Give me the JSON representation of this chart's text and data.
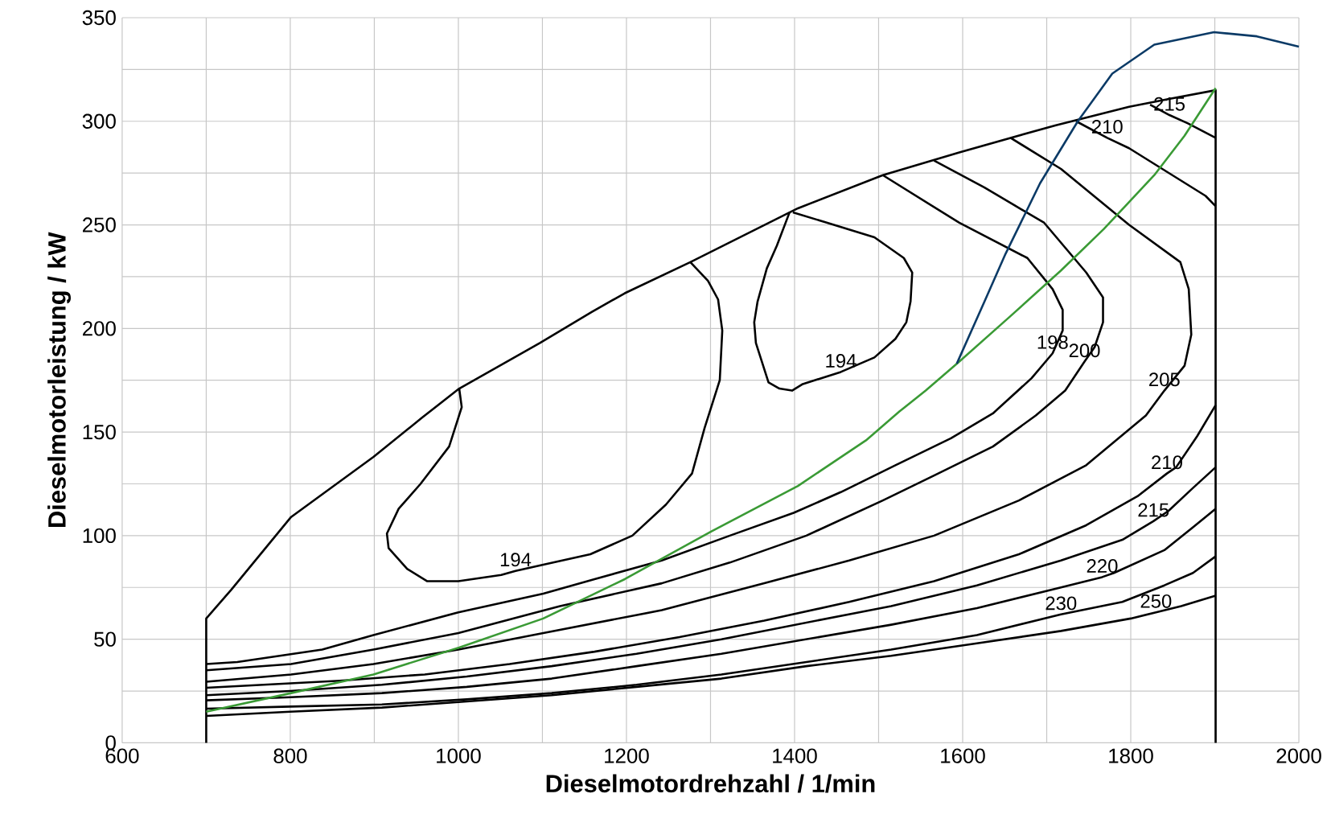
{
  "chart_data": {
    "type": "line",
    "xlabel": "Dieselmotordrehzahl / 1/min",
    "ylabel": "Dieselmotorleistung / kW",
    "xlim": [
      600,
      2000
    ],
    "ylim": [
      0,
      350
    ],
    "xticks": [
      600,
      800,
      1000,
      1200,
      1400,
      1600,
      1800,
      2000
    ],
    "yticks": [
      0,
      50,
      100,
      150,
      200,
      250,
      300,
      350
    ],
    "grid": true,
    "series": [
      {
        "color": "#000000",
        "x": [
          700,
          700,
          730,
          801,
          899,
          957,
          1001,
          1097,
          1159,
          1198,
          1276,
          1404,
          1505,
          1596,
          1710,
          1798,
          1848,
          1901,
          1901
        ],
        "values": [
          0,
          60,
          74,
          109,
          138,
          157,
          171,
          193,
          208,
          217,
          232,
          258,
          274,
          285,
          298,
          307,
          311,
          315,
          0
        ]
      },
      {
        "color": "#000000",
        "x": [
          1001,
          1004,
          989,
          955,
          929,
          915,
          917,
          939,
          963,
          1000,
          1051,
          1068,
          1101,
          1157,
          1207,
          1247,
          1278,
          1293,
          1311,
          1314,
          1309,
          1297,
          1276
        ],
        "values": [
          171,
          162,
          143,
          125,
          113,
          101,
          94,
          84,
          78,
          78,
          81,
          83,
          86,
          91,
          100,
          115,
          130,
          152,
          175,
          199,
          214,
          223,
          232
        ]
      },
      {
        "color": "#000000",
        "x": [
          1394,
          1379,
          1367,
          1356,
          1352,
          1354,
          1369,
          1382,
          1397,
          1409,
          1455,
          1495,
          1520,
          1533,
          1538,
          1540,
          1530,
          1495,
          1439,
          1398
        ],
        "values": [
          256,
          240,
          229,
          213,
          203,
          193,
          174,
          171,
          170,
          173,
          179,
          186,
          195,
          203,
          213,
          227,
          234,
          244,
          251,
          256
        ]
      },
      {
        "color": "#000000",
        "x": [
          1505,
          1596,
          1677,
          1707,
          1719,
          1719,
          1707,
          1682,
          1636,
          1586,
          1520,
          1455,
          1399,
          1323,
          1242,
          1162,
          1101,
          1000,
          899,
          838,
          737,
          700
        ],
        "values": [
          274,
          251,
          234,
          219,
          209,
          199,
          188,
          176,
          159,
          147,
          134,
          121,
          111,
          100,
          88,
          79,
          72,
          63,
          52,
          45,
          39,
          38
        ]
      },
      {
        "color": "#000000",
        "x": [
          1566,
          1626,
          1697,
          1747,
          1767,
          1767,
          1757,
          1745,
          1722,
          1687,
          1636,
          1566,
          1505,
          1414,
          1323,
          1242,
          1121,
          1000,
          899,
          801,
          700
        ],
        "values": [
          281,
          268,
          251,
          227,
          215,
          203,
          191,
          184,
          170,
          158,
          143,
          129,
          117,
          100,
          87,
          77,
          66,
          53,
          45,
          38,
          35
        ]
      },
      {
        "color": "#000000",
        "x": [
          1657,
          1717,
          1798,
          1859,
          1869,
          1872,
          1864,
          1840,
          1818,
          1747,
          1667,
          1566,
          1465,
          1364,
          1242,
          1101,
          1000,
          899,
          801,
          700
        ],
        "values": [
          292,
          277,
          250,
          232,
          219,
          197,
          182,
          170,
          158,
          134,
          117,
          100,
          88,
          77,
          64,
          53,
          45,
          38,
          33,
          29.5
        ]
      },
      {
        "color": "#000000",
        "x": [
          1735,
          1772,
          1798,
          1889,
          1901
        ],
        "values": [
          300,
          292,
          287,
          264,
          259
        ]
      },
      {
        "color": "#000000",
        "x": [
          1823,
          1846,
          1868,
          1901
        ],
        "values": [
          308,
          303,
          299,
          292
        ]
      },
      {
        "color": "#000000",
        "x": [
          1901,
          1879,
          1854,
          1843,
          1808,
          1747,
          1667,
          1566,
          1465,
          1364,
          1263,
          1162,
          1061,
          960,
          859,
          700
        ],
        "values": [
          163,
          148,
          133,
          130,
          119,
          105,
          91,
          78,
          68,
          59,
          51,
          44,
          38,
          33,
          30,
          26.6
        ]
      },
      {
        "color": "#000000",
        "x": [
          1901,
          1874,
          1845,
          1827,
          1790,
          1717,
          1617,
          1515,
          1414,
          1313,
          1212,
          1111,
          1010,
          909,
          800,
          700
        ],
        "values": [
          133,
          123,
          112,
          107,
          98,
          88,
          76,
          66,
          58,
          50,
          43,
          37,
          32,
          28,
          25,
          23
        ]
      },
      {
        "color": "#000000",
        "x": [
          1901,
          1874,
          1840,
          1780,
          1766,
          1717,
          1617,
          1515,
          1414,
          1313,
          1212,
          1111,
          1010,
          909,
          800,
          700
        ],
        "values": [
          113,
          104,
          93,
          82,
          80,
          75,
          65,
          57,
          50,
          43,
          37,
          31,
          27,
          24,
          22,
          20.5
        ]
      },
      {
        "color": "#000000",
        "x": [
          1901,
          1874,
          1840,
          1790,
          1717,
          1617,
          1515,
          1414,
          1313,
          1212,
          1111,
          1010,
          909,
          800,
          700
        ],
        "values": [
          90,
          82,
          76,
          68,
          62,
          52,
          45,
          39,
          33,
          28,
          24,
          21,
          18.5,
          17.5,
          16.5
        ]
      },
      {
        "color": "#000000",
        "x": [
          1901,
          1860,
          1830,
          1800,
          1717,
          1617,
          1515,
          1414,
          1313,
          1212,
          1111,
          1010,
          909,
          800,
          700
        ],
        "values": [
          71,
          66,
          63,
          60,
          54,
          48,
          42,
          37,
          31,
          27,
          23,
          20,
          17,
          15,
          13
        ]
      },
      {
        "color": "#3a9a35",
        "x": [
          700,
          801,
          899,
          1001,
          1101,
          1198,
          1301,
          1404,
          1485,
          1525,
          1556,
          1596,
          1657,
          1717,
          1768,
          1828,
          1864,
          1901
        ],
        "values": [
          15,
          24,
          33,
          46,
          60,
          79,
          102,
          124,
          146,
          160,
          170,
          184,
          206,
          228,
          248,
          274,
          293,
          316
        ]
      },
      {
        "color": "#0b3a66",
        "x": [
          1593,
          1626,
          1651,
          1692,
          1737,
          1778,
          1828,
          1899,
          1950,
          2000
        ],
        "values": [
          183,
          213,
          236,
          270,
          300,
          323,
          337,
          343,
          341,
          336
        ]
      }
    ],
    "annotations": [
      {
        "text": "194",
        "x": 1068,
        "y": 83
      },
      {
        "text": "194",
        "x": 1455,
        "y": 179
      },
      {
        "text": "198",
        "x": 1707,
        "y": 188
      },
      {
        "text": "200",
        "x": 1745,
        "y": 184
      },
      {
        "text": "205",
        "x": 1840,
        "y": 170
      },
      {
        "text": "210",
        "x": 1843,
        "y": 130
      },
      {
        "text": "215",
        "x": 1827,
        "y": 107
      },
      {
        "text": "220",
        "x": 1766,
        "y": 80
      },
      {
        "text": "230",
        "x": 1717,
        "y": 62
      },
      {
        "text": "250",
        "x": 1830,
        "y": 63
      },
      {
        "text": "210",
        "x": 1772,
        "y": 292
      },
      {
        "text": "215",
        "x": 1846,
        "y": 303
      }
    ]
  }
}
